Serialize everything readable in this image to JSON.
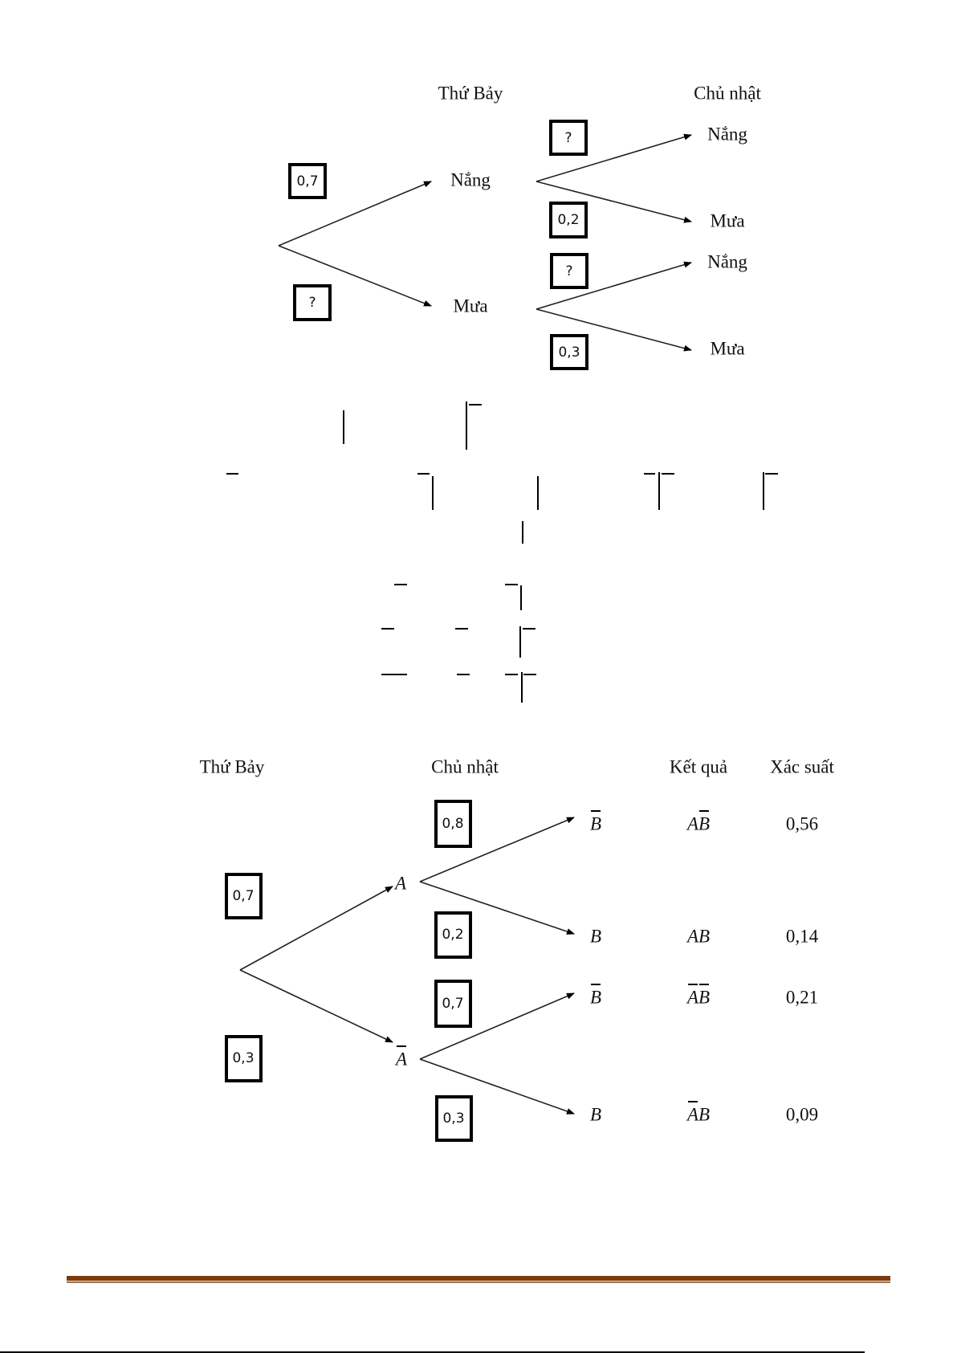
{
  "tree1": {
    "headers": {
      "saturday": "Thứ Bảy",
      "sunday": "Chủ nhật"
    },
    "saturday_nodes": [
      "Nắng",
      "Mưa"
    ],
    "sunday_nodes": [
      "Nắng",
      "Mưa",
      "Nắng",
      "Mưa"
    ],
    "first_probs": [
      "0,7",
      "?"
    ],
    "second_probs": [
      "?",
      "0,2",
      "?",
      "0,3"
    ]
  },
  "tree2": {
    "headers": {
      "saturday": "Thứ Bảy",
      "sunday": "Chủ nhật",
      "outcome": "Kết quả",
      "probability": "Xác suất"
    },
    "saturday_nodes": [
      "A",
      "A"
    ],
    "sunday_nodes": [
      "B",
      "B",
      "B",
      "B"
    ],
    "first_probs": [
      "0,7",
      "0,3"
    ],
    "second_probs": [
      "0,8",
      "0,2",
      "0,7",
      "0,3"
    ],
    "outcomes": [
      "AB",
      "AB",
      "AB",
      "AB"
    ],
    "probabilities": [
      "0,56",
      "0,14",
      "0,21",
      "0,09"
    ]
  },
  "footer": {
    "rule_color": "#7B3A0C"
  }
}
